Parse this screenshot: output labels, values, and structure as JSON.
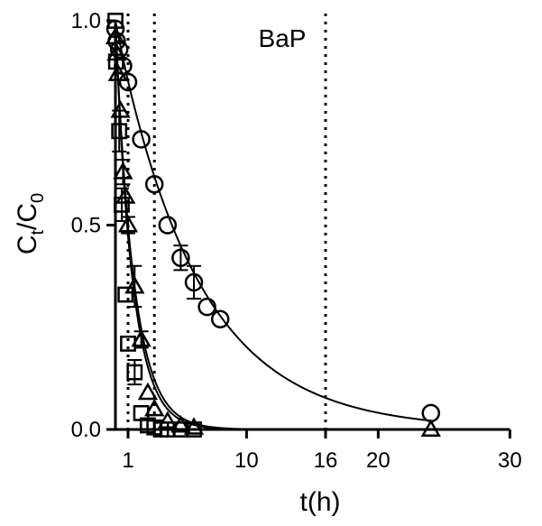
{
  "chart_data": {
    "type": "scatter",
    "title": "",
    "annotation": "BaP",
    "xlabel": "t(h)",
    "ylabel_main": "C",
    "ylabel_sub1": "t",
    "ylabel_mid": "/C",
    "ylabel_sub2": "0",
    "xlim": [
      0,
      30
    ],
    "ylim": [
      0,
      1.0
    ],
    "x_ticks": [
      {
        "value": 1,
        "label": "1"
      },
      {
        "value": 10,
        "label": "10"
      },
      {
        "value": 16,
        "label": "16"
      },
      {
        "value": 20,
        "label": "20"
      },
      {
        "value": 30,
        "label": "30"
      }
    ],
    "y_ticks": [
      {
        "value": 0.0,
        "label": "0.0"
      },
      {
        "value": 0.5,
        "label": "0.5"
      },
      {
        "value": 1.0,
        "label": "1.0"
      }
    ],
    "vlines": [
      1,
      3,
      16
    ],
    "grid": false,
    "series": [
      {
        "marker": "circle",
        "x": [
          0,
          0.1,
          0.3,
          0.6,
          1.0,
          2.0,
          3.0,
          4.0,
          5.0,
          6.0,
          7.0,
          8.0,
          24.0
        ],
        "y": [
          0.98,
          0.95,
          0.93,
          0.89,
          0.85,
          0.71,
          0.6,
          0.5,
          0.42,
          0.36,
          0.3,
          0.27,
          0.04
        ],
        "err": [
          0,
          0,
          0,
          0,
          0,
          0,
          0,
          0,
          0.03,
          0.04,
          0,
          0,
          0
        ],
        "fit_k": 0.16
      },
      {
        "marker": "triangle",
        "x": [
          0,
          0.1,
          0.2,
          0.4,
          0.6,
          0.8,
          1.0,
          1.5,
          2.0,
          2.5,
          3.0,
          4.0,
          5.0,
          6.0,
          24.0
        ],
        "y": [
          0.96,
          0.92,
          0.87,
          0.78,
          0.63,
          0.57,
          0.5,
          0.35,
          0.22,
          0.09,
          0.05,
          0.02,
          0.01,
          0.005,
          0.0
        ],
        "err": [
          0,
          0,
          0,
          0,
          0.03,
          0,
          0.02,
          0.05,
          0.02,
          0,
          0,
          0,
          0,
          0,
          0
        ],
        "fit_k": 0.7
      },
      {
        "marker": "square",
        "x": [
          0,
          0.05,
          0.3,
          0.5,
          0.8,
          1.0,
          1.5,
          2.0,
          2.5,
          3.0,
          3.5,
          4.0,
          5.0,
          6.0
        ],
        "y": [
          1.0,
          0.9,
          0.73,
          0.55,
          0.33,
          0.21,
          0.14,
          0.04,
          0.01,
          0.005,
          0.0,
          0.0,
          0.0,
          0.0
        ],
        "err": [
          0,
          0,
          0.05,
          0.04,
          0,
          0,
          0.03,
          0,
          0,
          0,
          0,
          0,
          0,
          0
        ],
        "fit_k": 0.75
      }
    ]
  }
}
